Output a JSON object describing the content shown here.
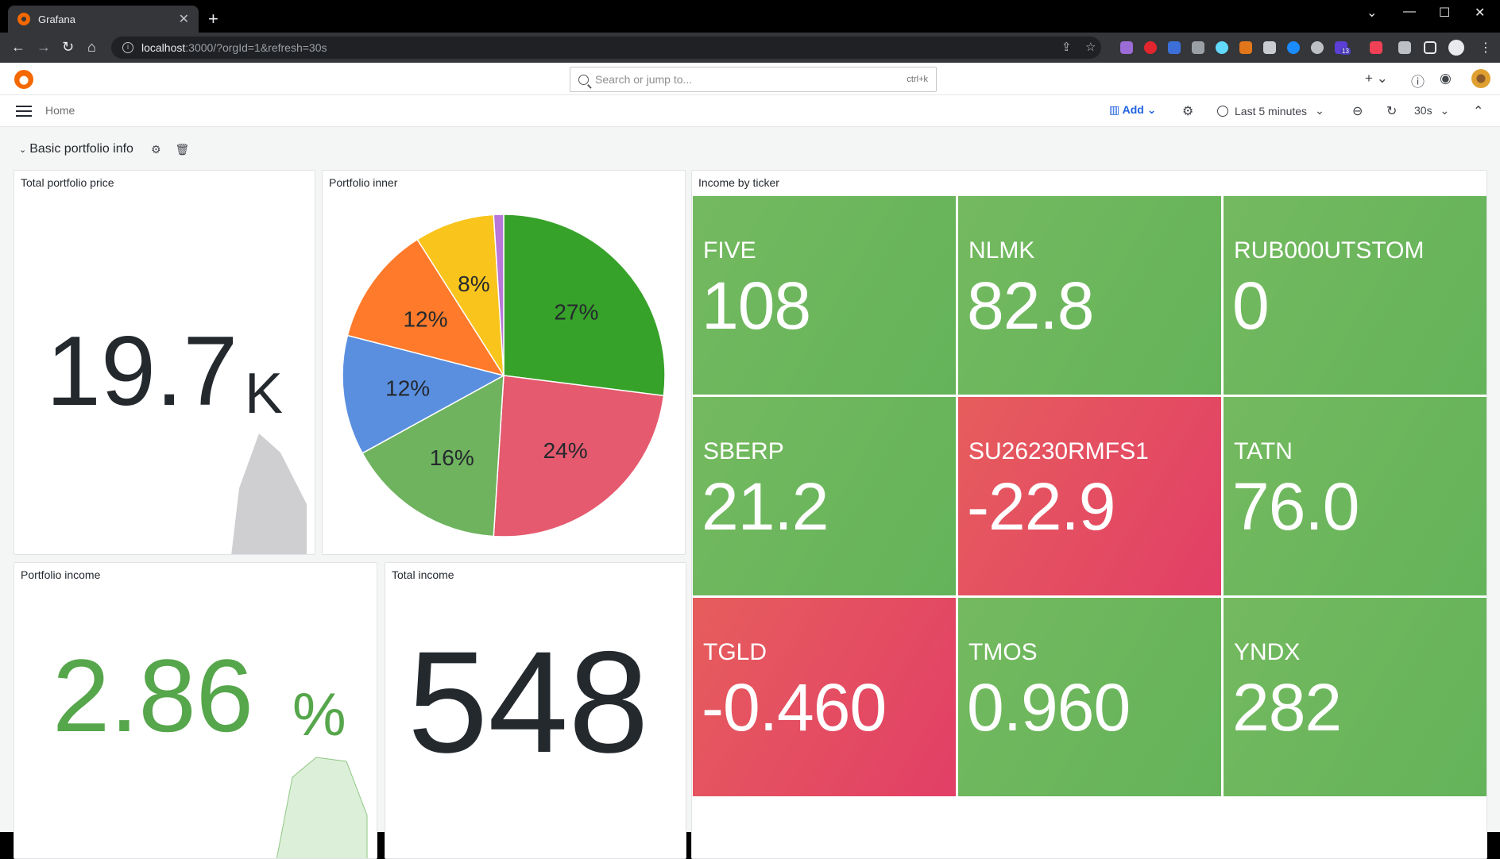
{
  "browser": {
    "tab_title": "Grafana",
    "url_host": "localhost",
    "url_path": ":3000/?orgId=1&refresh=30s",
    "ext_badge": "13"
  },
  "topbar": {
    "search_placeholder": "Search or jump to...",
    "search_shortcut": "ctrl+k"
  },
  "subbar": {
    "breadcrumb": "Home",
    "add_label": "Add",
    "time_range": "Last 5 minutes",
    "refresh_interval": "30s"
  },
  "row": {
    "title": "Basic portfolio info"
  },
  "panels": {
    "total_price": {
      "title": "Total portfolio price",
      "value": "19.7",
      "unit": "K"
    },
    "inner": {
      "title": "Portfolio inner"
    },
    "income_by_ticker": {
      "title": "Income by ticker"
    },
    "portfolio_income": {
      "title": "Portfolio income",
      "value": "2.86",
      "unit": "%"
    },
    "total_income": {
      "title": "Total income",
      "value": "548"
    }
  },
  "tickers": [
    {
      "name": "FIVE",
      "value": "108",
      "status": "green"
    },
    {
      "name": "NLMK",
      "value": "82.8",
      "status": "green"
    },
    {
      "name": "RUB000UTSTOM",
      "value": "0",
      "status": "green"
    },
    {
      "name": "SBERP",
      "value": "21.2",
      "status": "green"
    },
    {
      "name": "SU26230RMFS1",
      "value": "-22.9",
      "status": "red"
    },
    {
      "name": "TATN",
      "value": "76.0",
      "status": "green"
    },
    {
      "name": "TGLD",
      "value": "-0.460",
      "status": "red"
    },
    {
      "name": "TMOS",
      "value": "0.960",
      "status": "green"
    },
    {
      "name": "YNDX",
      "value": "282",
      "status": "green"
    }
  ],
  "colors": {
    "green": "#73bf69",
    "red": "#e24d62",
    "stat_green": "#56a64b"
  },
  "chart_data": {
    "type": "pie",
    "slices": [
      {
        "label": "27%",
        "value": 27,
        "color": "#37a229"
      },
      {
        "label": "24%",
        "value": 24,
        "color": "#e55a6e"
      },
      {
        "label": "16%",
        "value": 16,
        "color": "#6fb35f"
      },
      {
        "label": "12%",
        "value": 12,
        "color": "#5a8fe0"
      },
      {
        "label": "12%",
        "value": 12,
        "color": "#ff7a2a"
      },
      {
        "label": "8%",
        "value": 8,
        "color": "#f9c51d"
      },
      {
        "label": "",
        "value": 1,
        "color": "#b877d9"
      }
    ]
  }
}
